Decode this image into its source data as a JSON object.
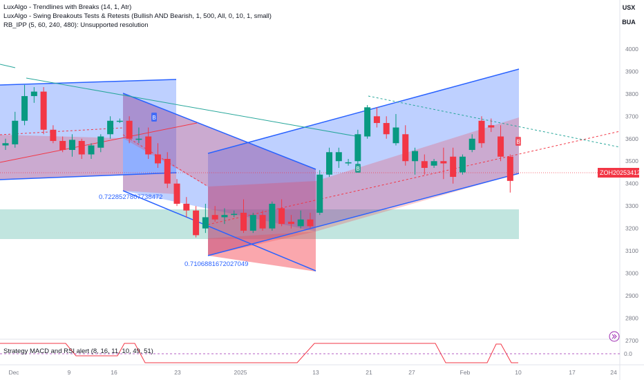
{
  "header": {
    "currency": "USX",
    "unit": "BUA"
  },
  "legend": {
    "line1": "LuxAlgo - Trendlines with Breaks (14, 1, Atr)",
    "line2": "LuxAlgo - Swing Breakouts Tests & Retests (Bullish AND Bearish, 1, 500, All, 0, 10, 1, small)",
    "line3": "RB_IPP (5, 60, 240, 480): Unsupported resolution"
  },
  "oscillator": {
    "label": "Strategy MACD and RSI alert (8, 16, 11, 10, 49, 51)",
    "axis_value": "0.0"
  },
  "annotations": {
    "upper": "0.7228527807738472",
    "lower": "0.7106881672027049",
    "retest_marker": "B"
  },
  "last_price": {
    "symbol": "ZOH2025",
    "value": "3412"
  },
  "colors": {
    "up": "#089981",
    "down": "#f23645",
    "channel_blue": "#2962ff",
    "channel_fill": "rgba(41,98,255,0.30)",
    "red_fill": "rgba(242,54,69,0.25)",
    "zone_fill": "rgba(8,153,129,0.25)",
    "trend_green": "#26a69a"
  },
  "chart_data": {
    "type": "candlestick",
    "title": "",
    "y_ticks": [
      2700,
      2800,
      2900,
      3000,
      3100,
      3200,
      3300,
      3400,
      3500,
      3600,
      3700,
      3800,
      3900,
      4000
    ],
    "ylim": [
      2655,
      4030
    ],
    "x_ticks": [
      "Dec",
      "9",
      "16",
      "23",
      "2025",
      "13",
      "21",
      "27",
      "Feb",
      "10",
      "17",
      "24"
    ],
    "candles": [
      {
        "o": 3570,
        "h": 3600,
        "l": 3550,
        "c": 3580
      },
      {
        "o": 3575,
        "h": 3720,
        "l": 3560,
        "c": 3680
      },
      {
        "o": 3680,
        "h": 3840,
        "l": 3660,
        "c": 3790
      },
      {
        "o": 3790,
        "h": 3830,
        "l": 3760,
        "c": 3810
      },
      {
        "o": 3810,
        "h": 3830,
        "l": 3620,
        "c": 3640
      },
      {
        "o": 3640,
        "h": 3660,
        "l": 3580,
        "c": 3590
      },
      {
        "o": 3590,
        "h": 3610,
        "l": 3540,
        "c": 3550
      },
      {
        "o": 3550,
        "h": 3620,
        "l": 3520,
        "c": 3595
      },
      {
        "o": 3590,
        "h": 3600,
        "l": 3510,
        "c": 3530
      },
      {
        "o": 3530,
        "h": 3580,
        "l": 3510,
        "c": 3570
      },
      {
        "o": 3560,
        "h": 3620,
        "l": 3540,
        "c": 3610
      },
      {
        "o": 3620,
        "h": 3700,
        "l": 3600,
        "c": 3680
      },
      {
        "o": 3680,
        "h": 3690,
        "l": 3670,
        "c": 3680
      },
      {
        "o": 3680,
        "h": 3700,
        "l": 3580,
        "c": 3600
      },
      {
        "o": 3600,
        "h": 3650,
        "l": 3580,
        "c": 3600
      },
      {
        "o": 3610,
        "h": 3650,
        "l": 3510,
        "c": 3530
      },
      {
        "o": 3530,
        "h": 3580,
        "l": 3470,
        "c": 3490
      },
      {
        "o": 3510,
        "h": 3540,
        "l": 3380,
        "c": 3400
      },
      {
        "o": 3400,
        "h": 3420,
        "l": 3300,
        "c": 3310
      },
      {
        "o": 3310,
        "h": 3340,
        "l": 3250,
        "c": 3280
      },
      {
        "o": 3280,
        "h": 3300,
        "l": 3160,
        "c": 3170
      },
      {
        "o": 3200,
        "h": 3310,
        "l": 3180,
        "c": 3250
      },
      {
        "o": 3260,
        "h": 3300,
        "l": 3230,
        "c": 3240
      },
      {
        "o": 3250,
        "h": 3290,
        "l": 3220,
        "c": 3260
      },
      {
        "o": 3260,
        "h": 3280,
        "l": 3250,
        "c": 3265
      },
      {
        "o": 3270,
        "h": 3330,
        "l": 3180,
        "c": 3190
      },
      {
        "o": 3190,
        "h": 3270,
        "l": 3180,
        "c": 3260
      },
      {
        "o": 3260,
        "h": 3280,
        "l": 3190,
        "c": 3200
      },
      {
        "o": 3200,
        "h": 3320,
        "l": 3190,
        "c": 3310
      },
      {
        "o": 3290,
        "h": 3330,
        "l": 3210,
        "c": 3220
      },
      {
        "o": 3230,
        "h": 3260,
        "l": 3200,
        "c": 3220
      },
      {
        "o": 3210,
        "h": 3280,
        "l": 3200,
        "c": 3240
      },
      {
        "o": 3240,
        "h": 3270,
        "l": 3200,
        "c": 3210
      },
      {
        "o": 3270,
        "h": 3460,
        "l": 3260,
        "c": 3440
      },
      {
        "o": 3440,
        "h": 3560,
        "l": 3430,
        "c": 3540
      },
      {
        "o": 3500,
        "h": 3560,
        "l": 3470,
        "c": 3540
      },
      {
        "o": 3490,
        "h": 3510,
        "l": 3480,
        "c": 3495
      },
      {
        "o": 3500,
        "h": 3640,
        "l": 3480,
        "c": 3620
      },
      {
        "o": 3610,
        "h": 3750,
        "l": 3600,
        "c": 3740
      },
      {
        "o": 3700,
        "h": 3740,
        "l": 3650,
        "c": 3670
      },
      {
        "o": 3670,
        "h": 3700,
        "l": 3600,
        "c": 3620
      },
      {
        "o": 3580,
        "h": 3710,
        "l": 3570,
        "c": 3650
      },
      {
        "o": 3620,
        "h": 3660,
        "l": 3480,
        "c": 3500
      },
      {
        "o": 3500,
        "h": 3560,
        "l": 3440,
        "c": 3545
      },
      {
        "o": 3500,
        "h": 3530,
        "l": 3440,
        "c": 3470
      },
      {
        "o": 3480,
        "h": 3510,
        "l": 3470,
        "c": 3500
      },
      {
        "o": 3500,
        "h": 3560,
        "l": 3420,
        "c": 3490
      },
      {
        "o": 3520,
        "h": 3560,
        "l": 3400,
        "c": 3430
      },
      {
        "o": 3450,
        "h": 3530,
        "l": 3440,
        "c": 3520
      },
      {
        "o": 3550,
        "h": 3620,
        "l": 3540,
        "c": 3600
      },
      {
        "o": 3680,
        "h": 3700,
        "l": 3560,
        "c": 3580
      },
      {
        "o": 3660,
        "h": 3690,
        "l": 3630,
        "c": 3650
      },
      {
        "o": 3610,
        "h": 3660,
        "l": 3500,
        "c": 3520
      },
      {
        "o": 3520,
        "h": 3530,
        "l": 3360,
        "c": 3412
      }
    ]
  }
}
